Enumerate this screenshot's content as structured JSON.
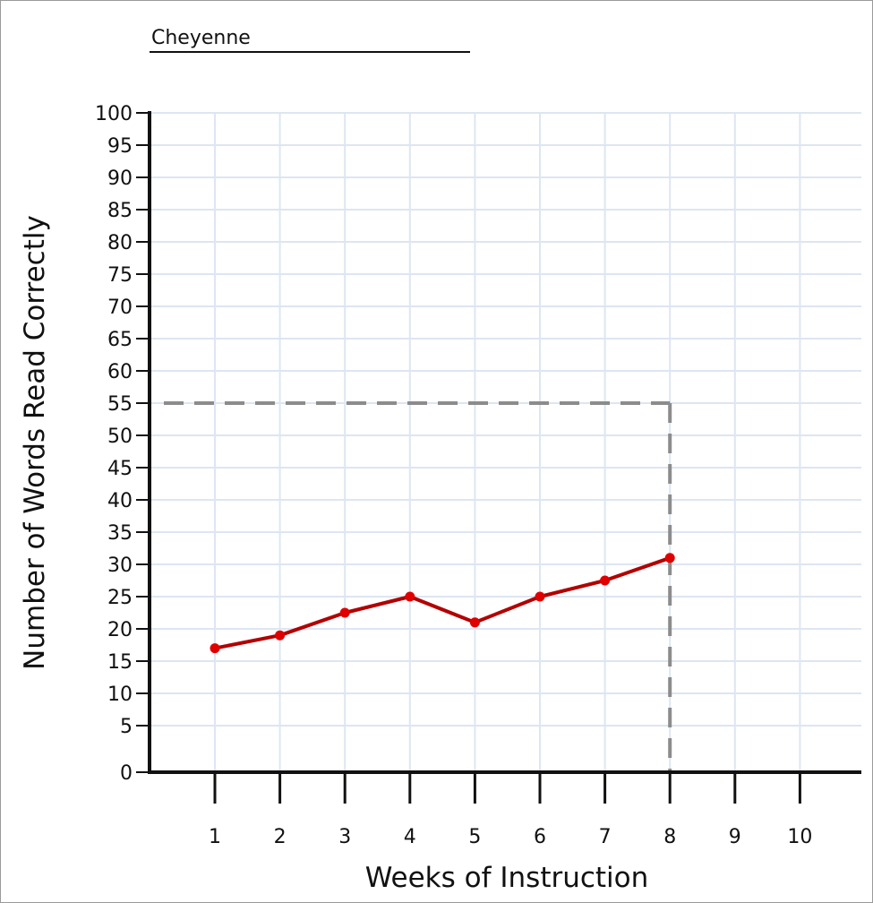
{
  "student_name": "Cheyenne",
  "chart_data": {
    "type": "line",
    "xlabel": "Weeks of Instruction",
    "ylabel": "Number of Words Read Correctly",
    "x_ticks": [
      "1",
      "2",
      "3",
      "4",
      "5",
      "6",
      "7",
      "8",
      "9",
      "10"
    ],
    "y_ticks": [
      "0",
      "5",
      "10",
      "15",
      "20",
      "25",
      "30",
      "35",
      "40",
      "45",
      "50",
      "55",
      "60",
      "65",
      "70",
      "75",
      "80",
      "85",
      "90",
      "95",
      "100"
    ],
    "xlim": [
      0,
      11
    ],
    "ylim": [
      0,
      100
    ],
    "grid": true,
    "series": [
      {
        "x": [
          1,
          2,
          3,
          4,
          5,
          6,
          7,
          8
        ],
        "values": [
          17,
          19,
          22.5,
          25,
          21,
          25,
          27.5,
          31
        ],
        "color": "#b30000",
        "marker_color": "#e00000"
      }
    ],
    "reference_lines": [
      {
        "from_y_axis_at": 55,
        "to_x": 8,
        "style": "dashed",
        "color": "#8c8c8c"
      }
    ],
    "colors": {
      "grid": "#dde6f2",
      "axis": "#111111"
    }
  }
}
